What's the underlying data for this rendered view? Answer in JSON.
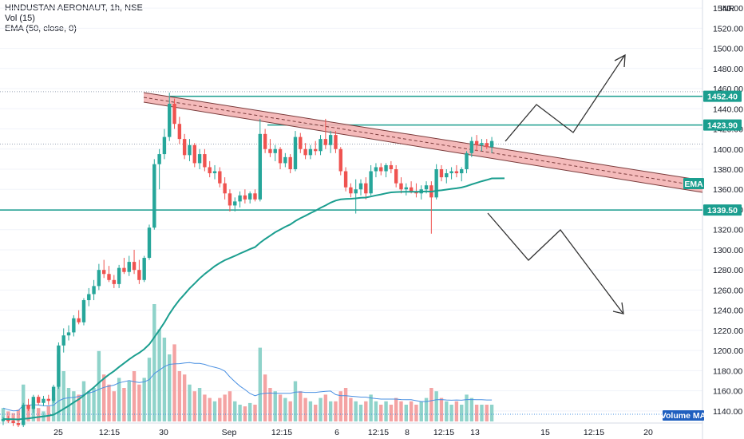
{
  "legend": {
    "symbol": "HINDUSTAN AERONAUT, 1h, NSE",
    "volume": "Vol (15)",
    "ema": "EMA (50, close, 0)"
  },
  "currency": "INR",
  "colors": {
    "up": "#26a69a",
    "down": "#ef5350",
    "up_volume": "#8fd3ca",
    "down_volume": "#f4a3a3",
    "ema": "#1b9e8f",
    "volume_ma": "#4a90e2",
    "level": "#1b9e8f",
    "channel_fill": "#f3b3b3",
    "channel_edge": "#7a3b3b",
    "arrow": "#333333",
    "tag_bg": "#1b9e8f"
  },
  "chart_data": {
    "type": "candlestick",
    "x_ticks": [
      "25",
      "12:15",
      "30",
      "Sep",
      "12:15",
      "6",
      "12:15",
      "8",
      "12:15",
      "13",
      "15",
      "12:15",
      "20"
    ],
    "y_ticks": [
      1140,
      1160,
      1180,
      1200,
      1220,
      1240,
      1260,
      1280,
      1300,
      1320,
      1340,
      1360,
      1380,
      1400,
      1420,
      1440,
      1460,
      1480,
      1500,
      1520,
      1540
    ],
    "ylim": [
      1128,
      1548
    ],
    "price_levels": [
      {
        "label": "1452.40",
        "value": 1452.4
      },
      {
        "label": "1423.90",
        "value": 1423.9
      },
      {
        "label": "1339.50",
        "value": 1339.5
      }
    ],
    "ema_label": "EMA",
    "volume_ma_label": "Volume MA",
    "candles": [
      [
        1130,
        1134,
        1126,
        1132
      ],
      [
        1132,
        1135,
        1128,
        1130
      ],
      [
        1130,
        1133,
        1125,
        1128
      ],
      [
        1128,
        1131,
        1124,
        1126
      ],
      [
        1126,
        1148,
        1124,
        1146
      ],
      [
        1146,
        1152,
        1140,
        1142
      ],
      [
        1142,
        1156,
        1138,
        1154
      ],
      [
        1154,
        1156,
        1146,
        1148
      ],
      [
        1148,
        1155,
        1145,
        1152
      ],
      [
        1152,
        1156,
        1146,
        1150
      ],
      [
        1150,
        1166,
        1148,
        1164
      ],
      [
        1164,
        1208,
        1162,
        1205
      ],
      [
        1205,
        1222,
        1198,
        1215
      ],
      [
        1215,
        1225,
        1210,
        1218
      ],
      [
        1218,
        1235,
        1214,
        1232
      ],
      [
        1232,
        1240,
        1226,
        1228
      ],
      [
        1228,
        1252,
        1225,
        1250
      ],
      [
        1250,
        1262,
        1244,
        1256
      ],
      [
        1256,
        1270,
        1250,
        1264
      ],
      [
        1264,
        1286,
        1260,
        1280
      ],
      [
        1280,
        1290,
        1272,
        1276
      ],
      [
        1276,
        1284,
        1268,
        1270
      ],
      [
        1270,
        1275,
        1262,
        1266
      ],
      [
        1266,
        1285,
        1262,
        1282
      ],
      [
        1282,
        1292,
        1276,
        1278
      ],
      [
        1278,
        1294,
        1274,
        1288
      ],
      [
        1288,
        1300,
        1276,
        1280
      ],
      [
        1280,
        1290,
        1266,
        1270
      ],
      [
        1270,
        1294,
        1268,
        1292
      ],
      [
        1292,
        1325,
        1290,
        1322
      ],
      [
        1322,
        1390,
        1320,
        1385
      ],
      [
        1385,
        1400,
        1360,
        1395
      ],
      [
        1395,
        1420,
        1390,
        1412
      ],
      [
        1412,
        1456,
        1408,
        1445
      ],
      [
        1445,
        1450,
        1420,
        1425
      ],
      [
        1425,
        1432,
        1405,
        1410
      ],
      [
        1410,
        1415,
        1390,
        1394
      ],
      [
        1394,
        1410,
        1388,
        1404
      ],
      [
        1404,
        1406,
        1382,
        1386
      ],
      [
        1386,
        1400,
        1380,
        1395
      ],
      [
        1395,
        1400,
        1378,
        1382
      ],
      [
        1382,
        1388,
        1372,
        1376
      ],
      [
        1376,
        1384,
        1370,
        1378
      ],
      [
        1378,
        1382,
        1362,
        1366
      ],
      [
        1366,
        1372,
        1350,
        1356
      ],
      [
        1356,
        1360,
        1338,
        1344
      ],
      [
        1344,
        1352,
        1338,
        1348
      ],
      [
        1348,
        1358,
        1342,
        1354
      ],
      [
        1354,
        1360,
        1346,
        1350
      ],
      [
        1350,
        1358,
        1346,
        1356
      ],
      [
        1356,
        1360,
        1348,
        1350
      ],
      [
        1350,
        1430,
        1348,
        1415
      ],
      [
        1415,
        1420,
        1396,
        1400
      ],
      [
        1400,
        1410,
        1392,
        1396
      ],
      [
        1396,
        1404,
        1388,
        1400
      ],
      [
        1400,
        1402,
        1380,
        1386
      ],
      [
        1386,
        1396,
        1382,
        1392
      ],
      [
        1392,
        1395,
        1376,
        1380
      ],
      [
        1380,
        1418,
        1378,
        1412
      ],
      [
        1412,
        1416,
        1396,
        1400
      ],
      [
        1400,
        1406,
        1390,
        1394
      ],
      [
        1394,
        1404,
        1390,
        1400
      ],
      [
        1400,
        1408,
        1394,
        1398
      ],
      [
        1398,
        1414,
        1394,
        1410
      ],
      [
        1410,
        1430,
        1400,
        1404
      ],
      [
        1404,
        1418,
        1396,
        1414
      ],
      [
        1414,
        1418,
        1396,
        1400
      ],
      [
        1400,
        1402,
        1374,
        1378
      ],
      [
        1378,
        1382,
        1358,
        1362
      ],
      [
        1362,
        1366,
        1352,
        1356
      ],
      [
        1356,
        1370,
        1336,
        1360
      ],
      [
        1360,
        1370,
        1354,
        1366
      ],
      [
        1366,
        1372,
        1350,
        1356
      ],
      [
        1356,
        1384,
        1354,
        1378
      ],
      [
        1378,
        1386,
        1372,
        1382
      ],
      [
        1382,
        1386,
        1374,
        1378
      ],
      [
        1378,
        1386,
        1372,
        1384
      ],
      [
        1384,
        1388,
        1376,
        1380
      ],
      [
        1380,
        1384,
        1362,
        1366
      ],
      [
        1366,
        1372,
        1356,
        1360
      ],
      [
        1360,
        1366,
        1354,
        1362
      ],
      [
        1362,
        1368,
        1356,
        1358
      ],
      [
        1358,
        1366,
        1352,
        1356
      ],
      [
        1356,
        1364,
        1350,
        1360
      ],
      [
        1360,
        1368,
        1356,
        1364
      ],
      [
        1364,
        1368,
        1316,
        1352
      ],
      [
        1352,
        1385,
        1350,
        1380
      ],
      [
        1380,
        1384,
        1368,
        1372
      ],
      [
        1372,
        1380,
        1366,
        1376
      ],
      [
        1376,
        1382,
        1370,
        1378
      ],
      [
        1378,
        1384,
        1372,
        1376
      ],
      [
        1376,
        1382,
        1368,
        1380
      ],
      [
        1380,
        1398,
        1376,
        1396
      ],
      [
        1396,
        1412,
        1392,
        1408
      ],
      [
        1408,
        1414,
        1398,
        1404
      ],
      [
        1404,
        1410,
        1398,
        1406
      ],
      [
        1406,
        1410,
        1400,
        1402
      ],
      [
        1402,
        1412,
        1396,
        1408
      ]
    ],
    "volumes": [
      8,
      6,
      5,
      7,
      22,
      10,
      12,
      8,
      6,
      9,
      14,
      40,
      30,
      20,
      18,
      16,
      24,
      18,
      20,
      42,
      28,
      22,
      18,
      26,
      20,
      24,
      30,
      22,
      26,
      38,
      70,
      55,
      50,
      40,
      46,
      30,
      28,
      22,
      18,
      20,
      16,
      14,
      12,
      14,
      16,
      18,
      12,
      10,
      9,
      11,
      10,
      44,
      28,
      20,
      18,
      16,
      14,
      12,
      24,
      18,
      14,
      12,
      10,
      14,
      16,
      12,
      12,
      18,
      20,
      14,
      12,
      10,
      12,
      16,
      12,
      10,
      12,
      10,
      14,
      12,
      10,
      12,
      10,
      12,
      14,
      20,
      18,
      14,
      12,
      10,
      12,
      10,
      16,
      14,
      10,
      10,
      10,
      10
    ],
    "volume_ymax": 100
  }
}
